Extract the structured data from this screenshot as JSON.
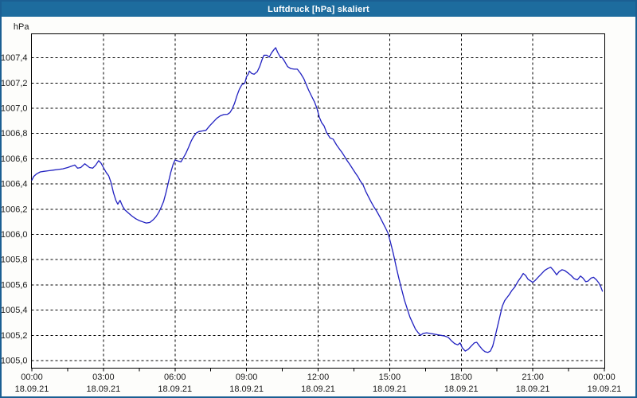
{
  "window": {
    "title": "Luftdruck [hPa] skaliert"
  },
  "colors": {
    "titlebar": "#1D6C9E",
    "window_border": "#1B5F93",
    "background": "#FDFDFB",
    "plot_background": "#FFFFFF",
    "grid": "#000000",
    "line": "#2020C0",
    "text": "#1a1a1a"
  },
  "chart_data": {
    "type": "line",
    "title": "Luftdruck [hPa] skaliert",
    "ylabel": "hPa",
    "grid": "dashed",
    "legend": "none",
    "x_unit": "hours",
    "xlim_hours": [
      0,
      24
    ],
    "ylim": [
      1004.94,
      1007.59
    ],
    "minor_tick_hours": 1.5,
    "y_ticks": [
      {
        "label": "1007,4",
        "value": 1007.4
      },
      {
        "label": "1007,2",
        "value": 1007.2
      },
      {
        "label": "1007,0",
        "value": 1007.0
      },
      {
        "label": "1006,8",
        "value": 1006.8
      },
      {
        "label": "1006,6",
        "value": 1006.6
      },
      {
        "label": "1006,4",
        "value": 1006.4
      },
      {
        "label": "1006,2",
        "value": 1006.2
      },
      {
        "label": "1006,0",
        "value": 1006.0
      },
      {
        "label": "1005,8",
        "value": 1005.8
      },
      {
        "label": "1005,6",
        "value": 1005.6
      },
      {
        "label": "1005,4",
        "value": 1005.4
      },
      {
        "label": "1005,2",
        "value": 1005.2
      },
      {
        "label": "1005,0",
        "value": 1005.0
      }
    ],
    "x_ticks": [
      {
        "hour": 0,
        "time": "00:00",
        "date": "18.09.21"
      },
      {
        "hour": 3,
        "time": "03:00",
        "date": "18.09.21"
      },
      {
        "hour": 6,
        "time": "06:00",
        "date": "18.09.21"
      },
      {
        "hour": 9,
        "time": "09:00",
        "date": "18.09.21"
      },
      {
        "hour": 12,
        "time": "12:00",
        "date": "18.09.21"
      },
      {
        "hour": 15,
        "time": "15:00",
        "date": "18.09.21"
      },
      {
        "hour": 18,
        "time": "18:00",
        "date": "18.09.21"
      },
      {
        "hour": 21,
        "time": "21:00",
        "date": "18.09.21"
      },
      {
        "hour": 24,
        "time": "00:00",
        "date": "19.09.21"
      }
    ],
    "series": [
      {
        "name": "Luftdruck",
        "color": "#2020C0",
        "points": [
          [
            0,
            1006.43
          ],
          [
            0.08,
            1006.46
          ],
          [
            0.2,
            1006.48
          ],
          [
            0.35,
            1006.495
          ],
          [
            0.5,
            1006.5
          ],
          [
            0.7,
            1006.505
          ],
          [
            0.9,
            1006.51
          ],
          [
            1.1,
            1006.515
          ],
          [
            1.3,
            1006.52
          ],
          [
            1.5,
            1006.53
          ],
          [
            1.65,
            1006.54
          ],
          [
            1.8,
            1006.55
          ],
          [
            1.92,
            1006.525
          ],
          [
            2.05,
            1006.53
          ],
          [
            2.22,
            1006.56
          ],
          [
            2.32,
            1006.545
          ],
          [
            2.42,
            1006.53
          ],
          [
            2.55,
            1006.525
          ],
          [
            2.68,
            1006.55
          ],
          [
            2.8,
            1006.585
          ],
          [
            2.9,
            1006.565
          ],
          [
            3.0,
            1006.53
          ],
          [
            3.12,
            1006.49
          ],
          [
            3.22,
            1006.465
          ],
          [
            3.32,
            1006.41
          ],
          [
            3.42,
            1006.33
          ],
          [
            3.52,
            1006.27
          ],
          [
            3.6,
            1006.24
          ],
          [
            3.7,
            1006.27
          ],
          [
            3.8,
            1006.225
          ],
          [
            3.9,
            1006.195
          ],
          [
            4.05,
            1006.17
          ],
          [
            4.2,
            1006.145
          ],
          [
            4.35,
            1006.125
          ],
          [
            4.5,
            1006.11
          ],
          [
            4.65,
            1006.1
          ],
          [
            4.8,
            1006.09
          ],
          [
            4.95,
            1006.095
          ],
          [
            5.08,
            1006.115
          ],
          [
            5.2,
            1006.14
          ],
          [
            5.32,
            1006.175
          ],
          [
            5.42,
            1006.215
          ],
          [
            5.52,
            1006.26
          ],
          [
            5.62,
            1006.33
          ],
          [
            5.72,
            1006.41
          ],
          [
            5.82,
            1006.49
          ],
          [
            5.92,
            1006.555
          ],
          [
            6.0,
            1006.59
          ],
          [
            6.08,
            1006.585
          ],
          [
            6.17,
            1006.58
          ],
          [
            6.25,
            1006.575
          ],
          [
            6.33,
            1006.6
          ],
          [
            6.45,
            1006.64
          ],
          [
            6.57,
            1006.69
          ],
          [
            6.68,
            1006.74
          ],
          [
            6.78,
            1006.775
          ],
          [
            6.9,
            1006.805
          ],
          [
            7.0,
            1006.815
          ],
          [
            7.15,
            1006.82
          ],
          [
            7.3,
            1006.825
          ],
          [
            7.45,
            1006.86
          ],
          [
            7.6,
            1006.89
          ],
          [
            7.75,
            1006.92
          ],
          [
            7.9,
            1006.94
          ],
          [
            8.05,
            1006.95
          ],
          [
            8.2,
            1006.952
          ],
          [
            8.3,
            1006.965
          ],
          [
            8.4,
            1006.995
          ],
          [
            8.5,
            1007.04
          ],
          [
            8.6,
            1007.1
          ],
          [
            8.7,
            1007.15
          ],
          [
            8.8,
            1007.185
          ],
          [
            8.93,
            1007.2
          ],
          [
            9.0,
            1007.25
          ],
          [
            9.07,
            1007.27
          ],
          [
            9.12,
            1007.295
          ],
          [
            9.22,
            1007.275
          ],
          [
            9.32,
            1007.27
          ],
          [
            9.45,
            1007.29
          ],
          [
            9.55,
            1007.33
          ],
          [
            9.65,
            1007.385
          ],
          [
            9.73,
            1007.42
          ],
          [
            9.85,
            1007.42
          ],
          [
            9.95,
            1007.405
          ],
          [
            10.05,
            1007.44
          ],
          [
            10.15,
            1007.465
          ],
          [
            10.22,
            1007.48
          ],
          [
            10.3,
            1007.445
          ],
          [
            10.4,
            1007.41
          ],
          [
            10.5,
            1007.4
          ],
          [
            10.6,
            1007.37
          ],
          [
            10.72,
            1007.33
          ],
          [
            10.85,
            1007.315
          ],
          [
            11.0,
            1007.31
          ],
          [
            11.13,
            1007.31
          ],
          [
            11.27,
            1007.275
          ],
          [
            11.4,
            1007.235
          ],
          [
            11.5,
            1007.19
          ],
          [
            11.6,
            1007.145
          ],
          [
            11.73,
            1007.095
          ],
          [
            11.85,
            1007.05
          ],
          [
            11.95,
            1007.0
          ],
          [
            12.05,
            1006.93
          ],
          [
            12.15,
            1006.885
          ],
          [
            12.25,
            1006.86
          ],
          [
            12.35,
            1006.81
          ],
          [
            12.5,
            1006.765
          ],
          [
            12.63,
            1006.755
          ],
          [
            12.77,
            1006.71
          ],
          [
            12.9,
            1006.675
          ],
          [
            13.0,
            1006.65
          ],
          [
            13.1,
            1006.62
          ],
          [
            13.2,
            1006.59
          ],
          [
            13.33,
            1006.555
          ],
          [
            13.45,
            1006.52
          ],
          [
            13.57,
            1006.485
          ],
          [
            13.68,
            1006.455
          ],
          [
            13.78,
            1006.42
          ],
          [
            13.88,
            1006.395
          ],
          [
            14.0,
            1006.34
          ],
          [
            14.12,
            1006.295
          ],
          [
            14.23,
            1006.255
          ],
          [
            14.35,
            1006.215
          ],
          [
            14.47,
            1006.18
          ],
          [
            14.6,
            1006.135
          ],
          [
            14.72,
            1006.09
          ],
          [
            14.83,
            1006.05
          ],
          [
            14.93,
            1006.01
          ],
          [
            15.03,
            1005.94
          ],
          [
            15.15,
            1005.85
          ],
          [
            15.27,
            1005.745
          ],
          [
            15.38,
            1005.655
          ],
          [
            15.5,
            1005.565
          ],
          [
            15.62,
            1005.48
          ],
          [
            15.73,
            1005.415
          ],
          [
            15.85,
            1005.345
          ],
          [
            15.97,
            1005.295
          ],
          [
            16.08,
            1005.25
          ],
          [
            16.2,
            1005.22
          ],
          [
            16.3,
            1005.2
          ],
          [
            16.4,
            1005.215
          ],
          [
            16.55,
            1005.22
          ],
          [
            16.7,
            1005.215
          ],
          [
            16.85,
            1005.21
          ],
          [
            17.0,
            1005.205
          ],
          [
            17.15,
            1005.2
          ],
          [
            17.3,
            1005.195
          ],
          [
            17.45,
            1005.185
          ],
          [
            17.6,
            1005.155
          ],
          [
            17.72,
            1005.135
          ],
          [
            17.85,
            1005.125
          ],
          [
            17.95,
            1005.14
          ],
          [
            18.05,
            1005.1
          ],
          [
            18.17,
            1005.075
          ],
          [
            18.3,
            1005.09
          ],
          [
            18.42,
            1005.115
          ],
          [
            18.55,
            1005.14
          ],
          [
            18.65,
            1005.145
          ],
          [
            18.77,
            1005.115
          ],
          [
            18.9,
            1005.085
          ],
          [
            19.0,
            1005.07
          ],
          [
            19.12,
            1005.065
          ],
          [
            19.22,
            1005.075
          ],
          [
            19.32,
            1005.115
          ],
          [
            19.42,
            1005.19
          ],
          [
            19.52,
            1005.27
          ],
          [
            19.62,
            1005.35
          ],
          [
            19.72,
            1005.43
          ],
          [
            19.82,
            1005.475
          ],
          [
            19.9,
            1005.495
          ],
          [
            20.0,
            1005.52
          ],
          [
            20.12,
            1005.555
          ],
          [
            20.25,
            1005.585
          ],
          [
            20.37,
            1005.625
          ],
          [
            20.5,
            1005.66
          ],
          [
            20.6,
            1005.69
          ],
          [
            20.7,
            1005.675
          ],
          [
            20.8,
            1005.645
          ],
          [
            20.92,
            1005.63
          ],
          [
            21.0,
            1005.62
          ],
          [
            21.1,
            1005.635
          ],
          [
            21.22,
            1005.66
          ],
          [
            21.35,
            1005.685
          ],
          [
            21.5,
            1005.715
          ],
          [
            21.63,
            1005.73
          ],
          [
            21.75,
            1005.74
          ],
          [
            21.87,
            1005.715
          ],
          [
            22.0,
            1005.68
          ],
          [
            22.1,
            1005.705
          ],
          [
            22.22,
            1005.72
          ],
          [
            22.33,
            1005.715
          ],
          [
            22.47,
            1005.695
          ],
          [
            22.6,
            1005.675
          ],
          [
            22.73,
            1005.65
          ],
          [
            22.87,
            1005.64
          ],
          [
            23.0,
            1005.67
          ],
          [
            23.1,
            1005.655
          ],
          [
            23.22,
            1005.625
          ],
          [
            23.32,
            1005.63
          ],
          [
            23.45,
            1005.655
          ],
          [
            23.55,
            1005.66
          ],
          [
            23.67,
            1005.64
          ],
          [
            23.77,
            1005.615
          ],
          [
            23.85,
            1005.585
          ],
          [
            23.92,
            1005.55
          ]
        ]
      }
    ]
  }
}
